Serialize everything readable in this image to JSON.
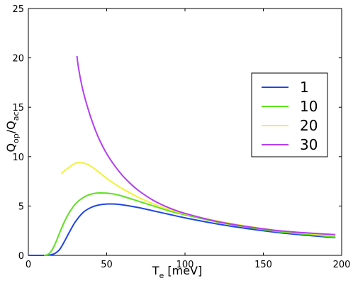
{
  "chart_data": {
    "type": "line",
    "title": "",
    "xlabel": {
      "main": "T",
      "sub": "e",
      "rest": " [meV]"
    },
    "ylabel": {
      "p1": "Q",
      "s1": "op",
      "p2": "/Q",
      "s2": "ac"
    },
    "xlim": [
      0,
      200
    ],
    "ylim": [
      0,
      25
    ],
    "xticks": [
      0,
      50,
      100,
      150,
      200
    ],
    "yticks": [
      0,
      5,
      10,
      15,
      20,
      25
    ],
    "xtick_labels": [
      "0",
      "50",
      "100",
      "150",
      "200"
    ],
    "ytick_labels": [
      "0",
      "5",
      "10",
      "15",
      "20",
      "25"
    ],
    "grid": false,
    "legend_position": "top-right",
    "series": [
      {
        "name": "1",
        "color": "#2046e8",
        "x": [
          0,
          5,
          10,
          14,
          17,
          20,
          23,
          26,
          30,
          35,
          40,
          45,
          50,
          55,
          60,
          70,
          80,
          90,
          100,
          120,
          140,
          160,
          180,
          196
        ],
        "y": [
          0,
          0,
          0,
          0.05,
          0.2,
          0.6,
          1.4,
          2.3,
          3.4,
          4.35,
          4.85,
          5.1,
          5.2,
          5.2,
          5.12,
          4.85,
          4.5,
          4.15,
          3.8,
          3.2,
          2.7,
          2.3,
          2.0,
          1.8
        ]
      },
      {
        "name": "10",
        "color": "#5de21e",
        "x": [
          10,
          12,
          14,
          16,
          18,
          20,
          23,
          26,
          30,
          35,
          40,
          45,
          50,
          55,
          60,
          70,
          80,
          90,
          100,
          120,
          140,
          160,
          180,
          196
        ],
        "y": [
          0,
          0.05,
          0.3,
          0.8,
          1.5,
          2.3,
          3.4,
          4.3,
          5.2,
          5.85,
          6.2,
          6.32,
          6.3,
          6.2,
          6.0,
          5.5,
          5.0,
          4.5,
          4.1,
          3.4,
          2.85,
          2.4,
          2.1,
          1.85
        ]
      },
      {
        "name": "20",
        "color": "#f2f23a",
        "x": [
          21,
          25,
          29,
          32,
          35,
          38,
          42,
          46,
          50,
          55,
          60,
          70,
          80,
          90,
          100,
          120,
          140,
          160,
          180,
          196
        ],
        "y": [
          8.3,
          8.8,
          9.25,
          9.4,
          9.35,
          9.2,
          8.8,
          8.3,
          7.8,
          7.25,
          6.75,
          5.9,
          5.2,
          4.65,
          4.2,
          3.5,
          2.95,
          2.5,
          2.2,
          2.0
        ]
      },
      {
        "name": "30",
        "color": "#b43ef0",
        "x": [
          31,
          32,
          34,
          36,
          38,
          40,
          43,
          46,
          50,
          55,
          60,
          65,
          70,
          80,
          90,
          100,
          120,
          140,
          160,
          180,
          196
        ],
        "y": [
          20.2,
          19.0,
          17.3,
          16.0,
          14.9,
          13.9,
          12.6,
          11.5,
          10.3,
          9.1,
          8.1,
          7.3,
          6.6,
          5.55,
          4.8,
          4.25,
          3.45,
          2.9,
          2.5,
          2.25,
          2.1
        ]
      }
    ]
  }
}
